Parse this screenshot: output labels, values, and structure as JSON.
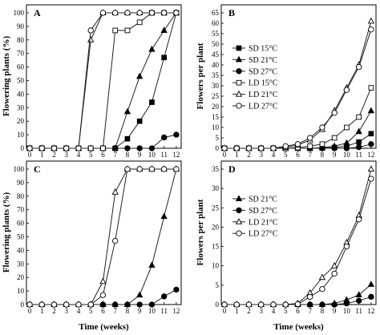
{
  "chart_data": [
    {
      "panel": "A",
      "type": "line",
      "xlabel": "",
      "ylabel": "Flowering plants (%)",
      "xlim": [
        0,
        12.4
      ],
      "ylim": [
        0,
        100
      ],
      "xticks": [
        "0",
        "1",
        "2",
        "3",
        "4",
        "5",
        "6",
        "7",
        "8",
        "9",
        "10",
        "11",
        "12"
      ],
      "yticks": [
        "0",
        "10",
        "20",
        "30",
        "40",
        "50",
        "60",
        "70",
        "80",
        "90",
        "100"
      ],
      "x": [
        0,
        1,
        2,
        3,
        4,
        5,
        6,
        7,
        8,
        9,
        10,
        11,
        12
      ],
      "series": [
        {
          "marker": "filled-square",
          "values": [
            0,
            0,
            0,
            0,
            0,
            0,
            0,
            0,
            7,
            20,
            34,
            67,
            100
          ]
        },
        {
          "marker": "filled-triangle",
          "values": [
            0,
            0,
            0,
            0,
            0,
            0,
            0,
            0,
            27,
            53,
            73,
            87,
            100
          ]
        },
        {
          "marker": "filled-circle",
          "values": [
            0,
            0,
            0,
            0,
            0,
            0,
            0,
            0,
            0,
            0,
            0,
            8,
            10
          ]
        },
        {
          "marker": "open-square",
          "values": [
            0,
            0,
            0,
            0,
            0,
            0,
            0,
            87,
            87,
            93,
            100,
            100,
            100
          ]
        },
        {
          "marker": "open-triangle",
          "values": [
            0,
            0,
            0,
            0,
            0,
            80,
            100,
            100,
            100,
            100,
            100,
            100,
            100
          ]
        },
        {
          "marker": "open-circle",
          "values": [
            0,
            0,
            0,
            0,
            0,
            87,
            100,
            100,
            100,
            100,
            100,
            100,
            100
          ]
        }
      ]
    },
    {
      "panel": "B",
      "type": "line",
      "xlabel": "",
      "ylabel": "Flowers per plant",
      "xlim": [
        0,
        12.4
      ],
      "ylim": [
        0,
        65
      ],
      "xticks": [
        "0",
        "1",
        "2",
        "3",
        "4",
        "5",
        "6",
        "7",
        "8",
        "9",
        "10",
        "11",
        "12"
      ],
      "yticks": [
        "0",
        "5",
        "10",
        "15",
        "20",
        "25",
        "30",
        "35",
        "40",
        "45",
        "50",
        "55",
        "60",
        "65"
      ],
      "x": [
        0,
        1,
        2,
        3,
        4,
        5,
        6,
        7,
        8,
        9,
        10,
        11,
        12
      ],
      "series": [
        {
          "name": "SD 15°C",
          "marker": "filled-square",
          "values": [
            0,
            0,
            0,
            0,
            0,
            0,
            0,
            0,
            0.1,
            0.4,
            1,
            3,
            7
          ]
        },
        {
          "name": "SD 21°C",
          "marker": "filled-triangle",
          "values": [
            0,
            0,
            0,
            0,
            0,
            0,
            0,
            0,
            0.3,
            1,
            2.5,
            8,
            18
          ]
        },
        {
          "name": "SD 27°C",
          "marker": "filled-circle",
          "values": [
            0,
            0,
            0,
            0,
            0,
            0,
            0,
            0,
            0,
            0,
            0,
            0.5,
            2
          ]
        },
        {
          "name": "LD 15°C",
          "marker": "open-square",
          "values": [
            0,
            0,
            0,
            0,
            0,
            0,
            0.3,
            1,
            2,
            5,
            10,
            15,
            29
          ]
        },
        {
          "name": "LD 21°C",
          "marker": "open-triangle",
          "values": [
            0,
            0,
            0,
            0,
            0,
            0.5,
            1.5,
            4,
            9,
            18,
            29,
            40,
            61
          ]
        },
        {
          "name": "LD 27°C",
          "marker": "open-circle",
          "values": [
            0,
            0,
            0,
            0,
            0,
            1,
            2,
            5,
            10,
            17,
            28,
            39,
            57
          ]
        }
      ],
      "legend": "left"
    },
    {
      "panel": "C",
      "type": "line",
      "xlabel": "Time (weeks)",
      "ylabel": "Flowering plants (%)",
      "xlim": [
        0,
        12.4
      ],
      "ylim": [
        0,
        100
      ],
      "xticks": [
        "0",
        "1",
        "2",
        "3",
        "4",
        "5",
        "6",
        "7",
        "8",
        "9",
        "10",
        "11",
        "12"
      ],
      "yticks": [
        "0",
        "10",
        "20",
        "30",
        "40",
        "50",
        "60",
        "70",
        "80",
        "90",
        "100"
      ],
      "x": [
        0,
        1,
        2,
        3,
        4,
        5,
        6,
        7,
        8,
        9,
        10,
        11,
        12
      ],
      "series": [
        {
          "marker": "filled-triangle",
          "values": [
            0,
            0,
            0,
            0,
            0,
            0,
            0,
            0,
            0,
            7,
            29,
            65,
            100
          ]
        },
        {
          "marker": "filled-circle",
          "values": [
            0,
            0,
            0,
            0,
            0,
            0,
            0,
            0,
            0,
            0,
            0,
            6,
            11
          ]
        },
        {
          "marker": "open-triangle",
          "values": [
            0,
            0,
            0,
            0,
            0,
            0,
            17,
            83,
            100,
            100,
            100,
            100,
            100
          ]
        },
        {
          "marker": "open-circle",
          "values": [
            0,
            0,
            0,
            0,
            0,
            0,
            7,
            47,
            100,
            100,
            100,
            100,
            100
          ]
        }
      ]
    },
    {
      "panel": "D",
      "type": "line",
      "xlabel": "Time (weeks)",
      "ylabel": "Flowers per plant",
      "xlim": [
        0,
        12.4
      ],
      "ylim": [
        0,
        35
      ],
      "xticks": [
        "0",
        "1",
        "2",
        "3",
        "4",
        "5",
        "6",
        "7",
        "8",
        "9",
        "10",
        "11",
        "12"
      ],
      "yticks": [
        "0",
        "5",
        "10",
        "15",
        "20",
        "25",
        "30",
        "35"
      ],
      "x": [
        0,
        1,
        2,
        3,
        4,
        5,
        6,
        7,
        8,
        9,
        10,
        11,
        12
      ],
      "series": [
        {
          "name": "SD 21°C",
          "marker": "filled-triangle",
          "values": [
            0,
            0,
            0,
            0,
            0,
            0,
            0,
            0,
            0,
            0.3,
            1.2,
            2.5,
            5.2
          ]
        },
        {
          "name": "SD 27°C",
          "marker": "filled-circle",
          "values": [
            0,
            0,
            0,
            0,
            0,
            0,
            0,
            0,
            0,
            0,
            0.3,
            1,
            2
          ]
        },
        {
          "name": "LD 21°C",
          "marker": "open-triangle",
          "values": [
            0,
            0,
            0,
            0,
            0,
            0,
            0.3,
            3,
            7,
            10,
            16,
            23,
            35
          ]
        },
        {
          "name": "LD 27°C",
          "marker": "open-circle",
          "values": [
            0,
            0,
            0,
            0,
            0,
            0,
            0.1,
            2,
            4,
            8,
            15,
            22,
            32.5
          ]
        }
      ],
      "legend": "left"
    }
  ]
}
